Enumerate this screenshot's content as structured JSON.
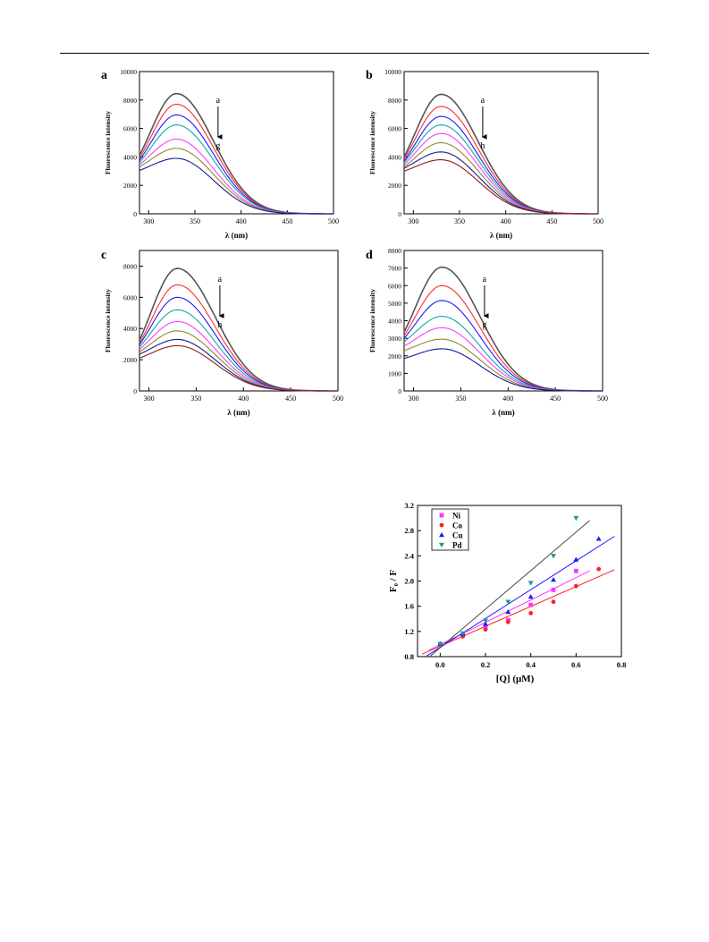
{
  "page": {
    "background": "#ffffff"
  },
  "fluorescence_panels": [
    {
      "panel_label": "a",
      "xlabel": "λ (nm)",
      "ylabel": "Fluorescence intensity",
      "xlim": [
        290,
        500
      ],
      "ylim": [
        0,
        10000
      ],
      "xticks": [
        300,
        350,
        400,
        450,
        500
      ],
      "yticks": [
        0,
        2000,
        4000,
        6000,
        8000,
        10000
      ],
      "arrow_start_label": "a",
      "arrow_end_label": "g",
      "chart_data": {
        "type": "line",
        "peak_x": 330,
        "curve_colors": [
          "#555555",
          "#ff2a2a",
          "#1a1aff",
          "#14a8a8",
          "#ff3cff",
          "#8c8c2a",
          "#1a1a8c"
        ],
        "series": [
          {
            "peak": 8450,
            "start": 4100
          },
          {
            "peak": 7700,
            "start": 3900
          },
          {
            "peak": 6950,
            "start": 3750
          },
          {
            "peak": 6250,
            "start": 3600
          },
          {
            "peak": 5250,
            "start": 3450
          },
          {
            "peak": 4600,
            "start": 3300
          },
          {
            "peak": 3900,
            "start": 3050
          }
        ]
      }
    },
    {
      "panel_label": "b",
      "xlabel": "λ (nm)",
      "ylabel": "Fluorescence intensity",
      "xlim": [
        290,
        500
      ],
      "ylim": [
        0,
        10000
      ],
      "xticks": [
        300,
        350,
        400,
        450,
        500
      ],
      "yticks": [
        0,
        2000,
        4000,
        6000,
        8000,
        10000
      ],
      "arrow_start_label": "a",
      "arrow_end_label": "h",
      "chart_data": {
        "type": "line",
        "peak_x": 330,
        "curve_colors": [
          "#555555",
          "#ff2a2a",
          "#1a1aff",
          "#14a8a8",
          "#ff3cff",
          "#8c8c2a",
          "#1a1a8c",
          "#8c1a1a"
        ],
        "series": [
          {
            "peak": 8400,
            "start": 4000
          },
          {
            "peak": 7550,
            "start": 3850
          },
          {
            "peak": 6850,
            "start": 3700
          },
          {
            "peak": 6250,
            "start": 3600
          },
          {
            "peak": 5650,
            "start": 3450
          },
          {
            "peak": 5000,
            "start": 3300
          },
          {
            "peak": 4350,
            "start": 3200
          },
          {
            "peak": 3800,
            "start": 3000
          }
        ]
      }
    },
    {
      "panel_label": "c",
      "xlabel": "λ (nm)",
      "ylabel": "Fluorescence intensity",
      "xlim": [
        290,
        500
      ],
      "ylim": [
        0,
        9000
      ],
      "xticks": [
        300,
        350,
        400,
        450,
        500
      ],
      "yticks": [
        0,
        2000,
        4000,
        6000,
        8000
      ],
      "arrow_start_label": "a",
      "arrow_end_label": "h",
      "chart_data": {
        "type": "line",
        "peak_x": 330,
        "curve_colors": [
          "#555555",
          "#ff2a2a",
          "#1a1aff",
          "#14a8a8",
          "#ff3cff",
          "#8c8c2a",
          "#1a1a8c",
          "#8c1a1a"
        ],
        "series": [
          {
            "peak": 7850,
            "start": 3250
          },
          {
            "peak": 6800,
            "start": 3050
          },
          {
            "peak": 6000,
            "start": 2950
          },
          {
            "peak": 5200,
            "start": 2800
          },
          {
            "peak": 4450,
            "start": 2650
          },
          {
            "peak": 3850,
            "start": 2500
          },
          {
            "peak": 3300,
            "start": 2350
          },
          {
            "peak": 2900,
            "start": 2100
          }
        ]
      }
    },
    {
      "panel_label": "d",
      "xlabel": "λ (nm)",
      "ylabel": "Fluorescence intensity",
      "xlim": [
        290,
        500
      ],
      "ylim": [
        0,
        8000
      ],
      "xticks": [
        300,
        350,
        400,
        450,
        500
      ],
      "yticks": [
        0,
        1000,
        2000,
        3000,
        4000,
        5000,
        6000,
        7000,
        8000
      ],
      "arrow_start_label": "a",
      "arrow_end_label": "g",
      "chart_data": {
        "type": "line",
        "peak_x": 330,
        "curve_colors": [
          "#555555",
          "#ff2a2a",
          "#1a1aff",
          "#14a8a8",
          "#ff3cff",
          "#8c8c2a",
          "#1a1a8c"
        ],
        "series": [
          {
            "peak": 7050,
            "start": 3350
          },
          {
            "peak": 6000,
            "start": 3150
          },
          {
            "peak": 5150,
            "start": 3000
          },
          {
            "peak": 4250,
            "start": 2800
          },
          {
            "peak": 3600,
            "start": 2550
          },
          {
            "peak": 2950,
            "start": 2300
          },
          {
            "peak": 2400,
            "start": 1850
          }
        ]
      }
    }
  ],
  "stern_volmer": {
    "xlabel": "[Q] (μM)",
    "ylabel": "F₀ / F",
    "xlim": [
      -0.1,
      0.8
    ],
    "ylim": [
      0.8,
      3.2
    ],
    "xticks": [
      "0.0",
      "0.2",
      "0.4",
      "0.6",
      "0.8"
    ],
    "yticks": [
      "0.8",
      "1.2",
      "1.6",
      "2.0",
      "2.4",
      "2.8",
      "3.2"
    ],
    "chart_data": {
      "type": "scatter",
      "series": [
        {
          "name": "Ni",
          "color": "#ff33ff",
          "marker": "square",
          "line_color": "#ff33ff",
          "x": [
            0.0,
            0.1,
            0.2,
            0.3,
            0.4,
            0.5,
            0.6
          ],
          "y": [
            1.0,
            1.14,
            1.27,
            1.38,
            1.62,
            1.86,
            2.16
          ],
          "fit": [
            [
              -0.05,
              0.9
            ],
            [
              0.66,
              2.16
            ]
          ]
        },
        {
          "name": "Co",
          "color": "#ff2222",
          "marker": "circle",
          "line_color": "#ff2222",
          "x": [
            0.0,
            0.1,
            0.2,
            0.3,
            0.4,
            0.5,
            0.6,
            0.7
          ],
          "y": [
            1.0,
            1.12,
            1.23,
            1.35,
            1.49,
            1.67,
            1.92,
            2.19
          ],
          "fit": [
            [
              -0.08,
              0.84
            ],
            [
              0.77,
              2.18
            ]
          ]
        },
        {
          "name": "Cu",
          "color": "#1a1aff",
          "marker": "triangle-up",
          "line_color": "#1a1aff",
          "x": [
            0.0,
            0.1,
            0.2,
            0.3,
            0.4,
            0.5,
            0.6,
            0.7
          ],
          "y": [
            1.0,
            1.16,
            1.32,
            1.51,
            1.75,
            2.02,
            2.34,
            2.67
          ],
          "fit": [
            [
              -0.06,
              0.81
            ],
            [
              0.77,
              2.71
            ]
          ]
        },
        {
          "name": "Pd",
          "color": "#1a9999",
          "marker": "triangle-down",
          "line_color": "#444444",
          "x": [
            0.0,
            0.1,
            0.2,
            0.3,
            0.4,
            0.5,
            0.6
          ],
          "y": [
            1.0,
            1.17,
            1.37,
            1.67,
            1.97,
            2.4,
            3.0
          ],
          "fit": [
            [
              -0.05,
              0.79
            ],
            [
              0.66,
              2.96
            ]
          ]
        }
      ]
    }
  }
}
